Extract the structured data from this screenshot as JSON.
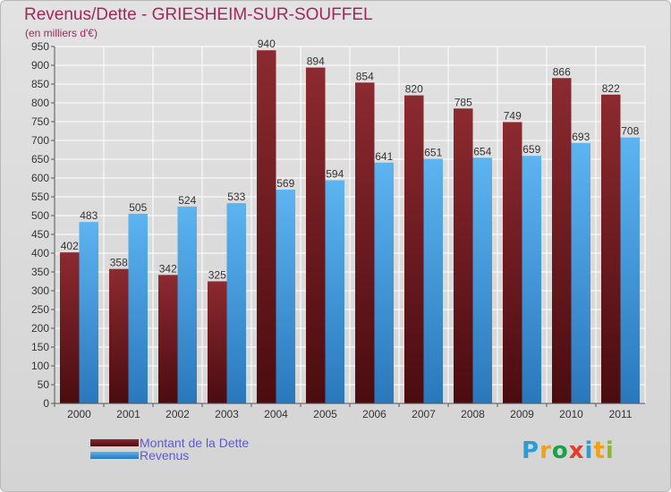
{
  "title": "Revenus/Dette - GRIESHEIM-SUR-SOUFFEL",
  "subtitle": "(en milliers d'€)",
  "logo": {
    "letters": [
      "P",
      "r",
      "o",
      "x",
      "i",
      "t",
      "i"
    ],
    "colors": [
      "#2e9bd6",
      "#f0a11c",
      "#1ca04a",
      "#e33c2a",
      "#2e9bd6",
      "#f0a11c",
      "#8ab92d"
    ]
  },
  "chart_data": {
    "type": "bar",
    "categories": [
      "2000",
      "2001",
      "2002",
      "2003",
      "2004",
      "2005",
      "2006",
      "2007",
      "2008",
      "2009",
      "2010",
      "2011"
    ],
    "series": [
      {
        "name": "Montant de la Dette",
        "values": [
          402,
          358,
          342,
          325,
          940,
          894,
          854,
          820,
          785,
          749,
          866,
          822
        ],
        "color": "#7a1e23"
      },
      {
        "name": "Revenus",
        "values": [
          483,
          505,
          524,
          533,
          569,
          594,
          641,
          651,
          654,
          659,
          693,
          708
        ],
        "color": "#4aa3e6"
      }
    ],
    "ylim": [
      0,
      950
    ],
    "yticks": [
      0,
      50,
      100,
      150,
      200,
      250,
      300,
      350,
      400,
      450,
      500,
      550,
      600,
      650,
      700,
      750,
      800,
      850,
      900,
      950
    ],
    "grid": true,
    "legend_position": "bottom-left"
  }
}
